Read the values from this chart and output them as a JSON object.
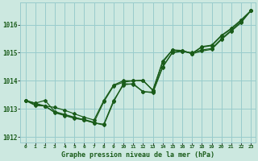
{
  "title": "Graphe pression niveau de la mer (hPa)",
  "background_color": "#cce8e0",
  "grid_color": "#99cccc",
  "line_color": "#1a5c1a",
  "ylim": [
    1011.8,
    1016.8
  ],
  "yticks": [
    1012,
    1013,
    1014,
    1015,
    1016
  ],
  "x_labels": [
    "0",
    "1",
    "2",
    "3",
    "4",
    "5",
    "6",
    "7",
    "8",
    "9",
    "10",
    "11",
    "12",
    "13",
    "14",
    "15",
    "16",
    "17",
    "18",
    "19",
    "20",
    "21",
    "22",
    "23"
  ],
  "series": [
    [
      1013.3,
      1013.2,
      1013.3,
      1012.9,
      1012.8,
      1012.7,
      1012.6,
      1012.5,
      1012.45,
      1013.3,
      1013.85,
      1013.9,
      1013.6,
      1013.6,
      1014.5,
      1015.0,
      1015.05,
      1015.0,
      1015.1,
      1015.15,
      1015.5,
      1015.8,
      1016.1,
      1016.5
    ],
    [
      1013.3,
      1013.15,
      1013.1,
      1012.88,
      1012.78,
      1012.68,
      1012.62,
      1012.52,
      1013.25,
      1013.82,
      1013.95,
      1014.0,
      1014.0,
      1013.67,
      1014.65,
      1015.1,
      1015.05,
      1014.98,
      1015.2,
      1015.25,
      1015.6,
      1015.85,
      1016.15,
      1016.5
    ],
    [
      1013.3,
      1013.2,
      1013.1,
      1013.05,
      1012.95,
      1012.82,
      1012.7,
      1012.6,
      1013.3,
      1013.85,
      1014.0,
      1014.0,
      1014.02,
      1013.65,
      1014.7,
      1015.1,
      1015.08,
      1014.97,
      1015.22,
      1015.27,
      1015.62,
      1015.87,
      1016.17,
      1016.5
    ],
    [
      1013.3,
      1013.12,
      1013.1,
      1012.86,
      1012.76,
      1012.66,
      1012.6,
      1012.5,
      1012.42,
      1013.25,
      1013.9,
      1013.87,
      1013.62,
      1013.57,
      1014.48,
      1015.02,
      1015.08,
      1014.96,
      1015.06,
      1015.12,
      1015.47,
      1015.77,
      1016.07,
      1016.5
    ]
  ],
  "marker": "D",
  "marker_size": 2.0,
  "linewidth": 0.9
}
